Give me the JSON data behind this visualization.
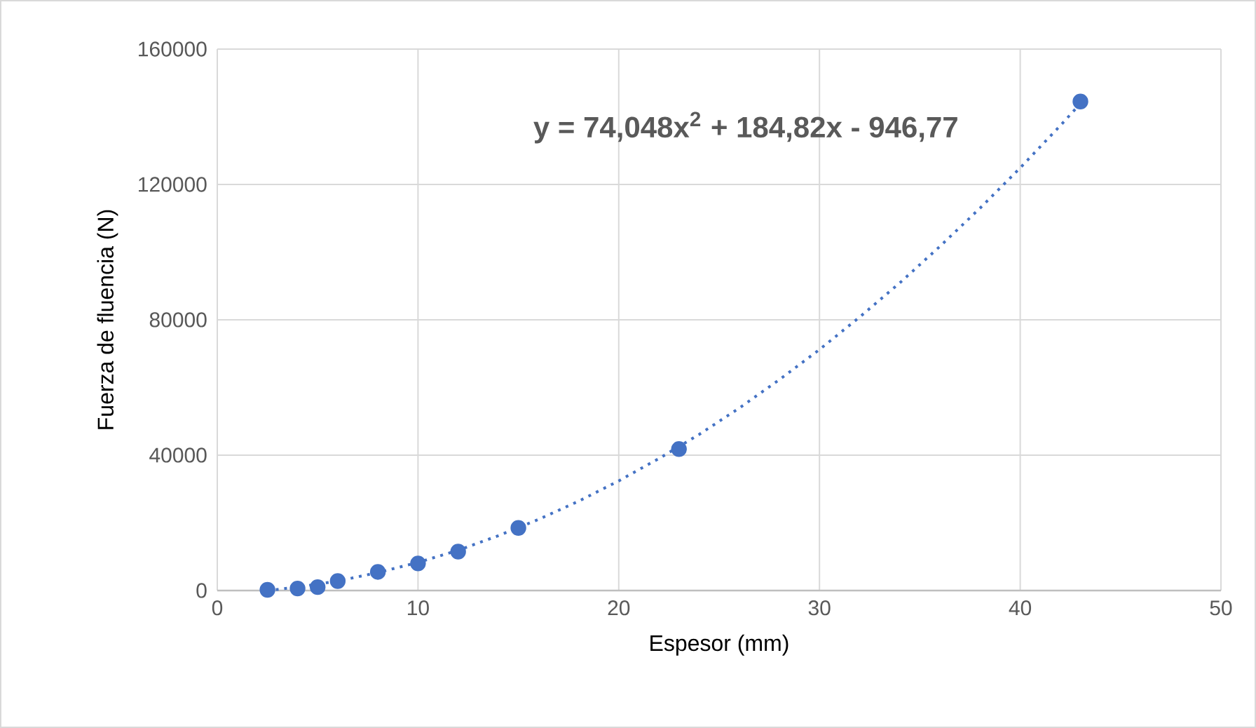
{
  "chart_data": {
    "type": "scatter",
    "xlabel": "Espesor (mm)",
    "ylabel": "Fuerza de fluencia (N)",
    "annotations": [
      "**y = 74,048x$^{2}$ + 184,82x - 946,77**"
    ],
    "xlim": [
      0,
      50
    ],
    "xticks": [
      0,
      10,
      20,
      30,
      40,
      50
    ],
    "ylim": [
      0,
      160000
    ],
    "yticks": [
      0,
      40000,
      80000,
      120000,
      160000
    ],
    "grid": true,
    "series": [
      {
        "color": "#4472c4",
        "marker": "circle",
        "x": [
          2.5,
          4,
          5,
          6,
          8,
          10,
          12,
          15,
          23,
          43
        ],
        "values": [
          200,
          600,
          1000,
          2800,
          5500,
          8000,
          11500,
          18500,
          41800,
          144500
        ]
      },
      {
        "type": "line",
        "color": "#4472c4",
        "marker": "none",
        "line_style": "dotted",
        "x": [
          2.5,
          4,
          6,
          8,
          10,
          12,
          14,
          16,
          18,
          20,
          22,
          24,
          26,
          28,
          30,
          32,
          34,
          36,
          38,
          40,
          42,
          43
        ],
        "values": [
          0,
          1000,
          2800,
          5300,
          8300,
          11900,
          16200,
          21000,
          26400,
          32400,
          39000,
          46100,
          53900,
          62300,
          71200,
          80800,
          90900,
          101700,
          113000,
          124900,
          137400,
          143900
        ]
      }
    ]
  }
}
